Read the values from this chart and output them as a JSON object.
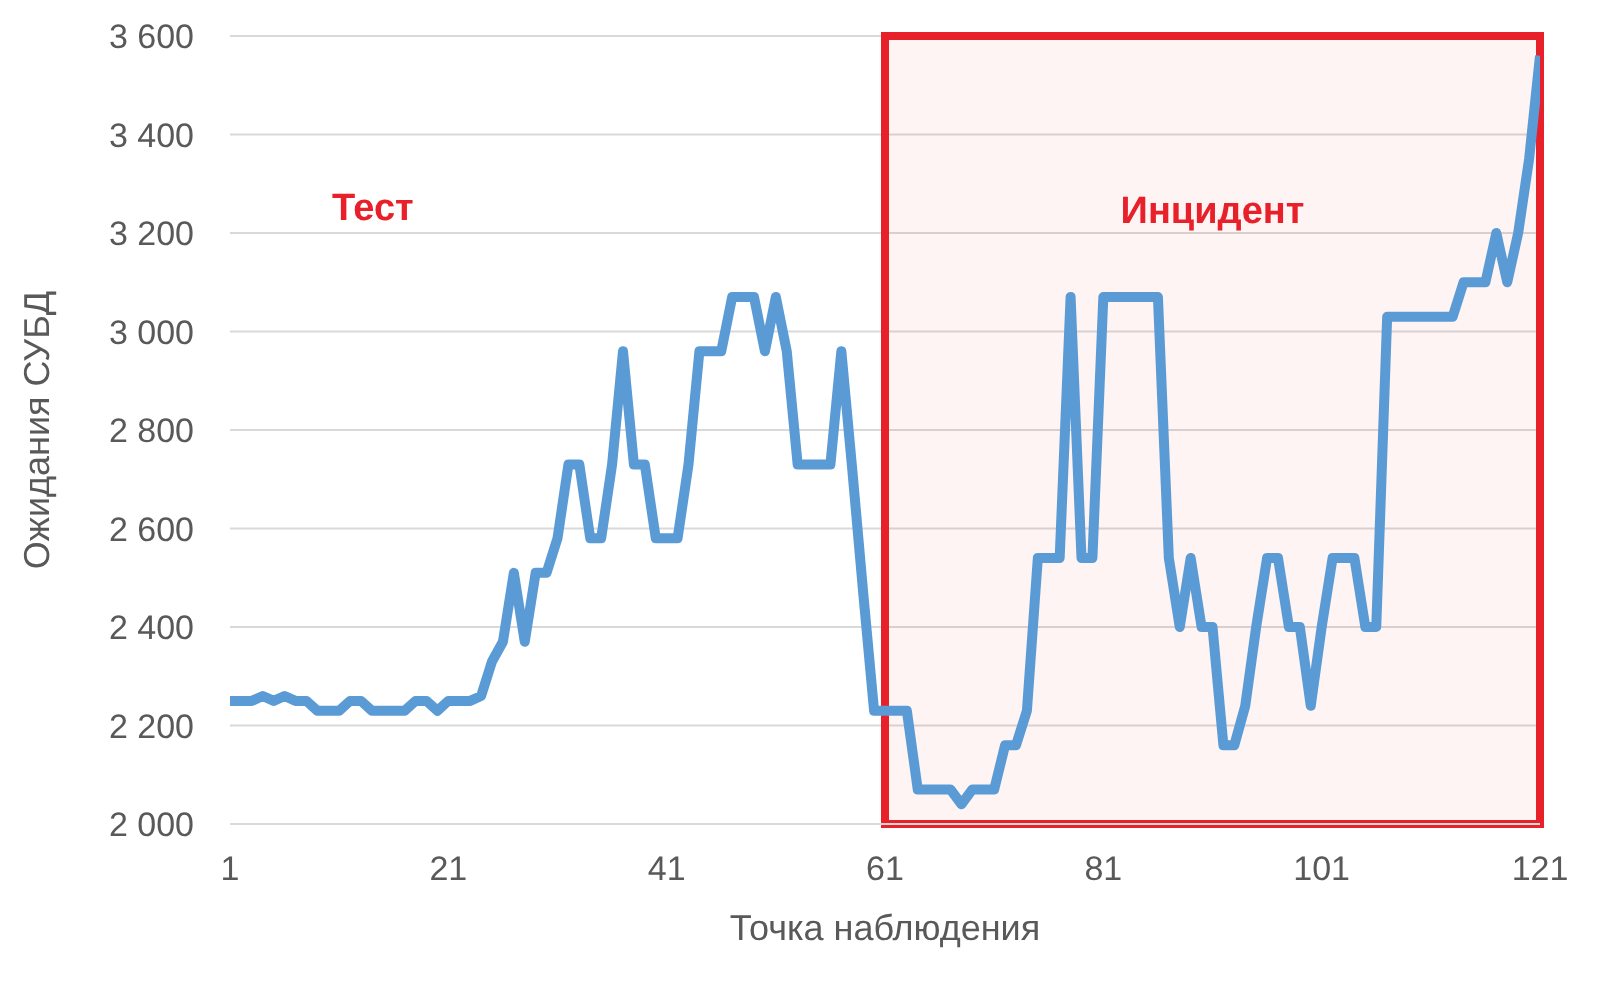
{
  "chart_data": {
    "type": "line",
    "xlabel": "Точка наблюдения",
    "ylabel": "Ожидания СУБД",
    "x": [
      1,
      2,
      3,
      4,
      5,
      6,
      7,
      8,
      9,
      10,
      11,
      12,
      13,
      14,
      15,
      16,
      17,
      18,
      19,
      20,
      21,
      22,
      23,
      24,
      25,
      26,
      27,
      28,
      29,
      30,
      31,
      32,
      33,
      34,
      35,
      36,
      37,
      38,
      39,
      40,
      41,
      42,
      43,
      44,
      45,
      46,
      47,
      48,
      49,
      50,
      51,
      52,
      53,
      54,
      55,
      56,
      57,
      58,
      59,
      60,
      61,
      62,
      63,
      64,
      65,
      66,
      67,
      68,
      69,
      70,
      71,
      72,
      73,
      74,
      75,
      76,
      77,
      78,
      79,
      80,
      81,
      82,
      83,
      84,
      85,
      86,
      87,
      88,
      89,
      90,
      91,
      92,
      93,
      94,
      95,
      96,
      97,
      98,
      99,
      100,
      101,
      102,
      103,
      104,
      105,
      106,
      107,
      108,
      109,
      110,
      111,
      112,
      113,
      114,
      115,
      116,
      117,
      118,
      119,
      120,
      121
    ],
    "series": [
      {
        "color": "#5b9bd5",
        "values": [
          2250,
          2250,
          2250,
          2260,
          2250,
          2260,
          2250,
          2250,
          2230,
          2230,
          2230,
          2250,
          2250,
          2230,
          2230,
          2230,
          2230,
          2250,
          2250,
          2230,
          2250,
          2250,
          2250,
          2260,
          2330,
          2370,
          2510,
          2370,
          2510,
          2510,
          2580,
          2730,
          2730,
          2580,
          2580,
          2730,
          2960,
          2730,
          2730,
          2580,
          2580,
          2580,
          2730,
          2960,
          2960,
          2960,
          3070,
          3070,
          3070,
          2960,
          3070,
          2960,
          2730,
          2730,
          2730,
          2730,
          2960,
          2720,
          2470,
          2230,
          2230,
          2230,
          2230,
          2070,
          2070,
          2070,
          2070,
          2040,
          2070,
          2070,
          2070,
          2160,
          2160,
          2230,
          2540,
          2540,
          2540,
          3070,
          2540,
          2540,
          3070,
          3070,
          3070,
          3070,
          3070,
          3070,
          2540,
          2400,
          2540,
          2400,
          2400,
          2160,
          2160,
          2240,
          2400,
          2540,
          2540,
          2400,
          2400,
          2240,
          2400,
          2540,
          2540,
          2540,
          2400,
          2400,
          3030,
          3030,
          3030,
          3030,
          3030,
          3030,
          3030,
          3100,
          3100,
          3100,
          3200,
          3100,
          3200,
          3350,
          3560
        ]
      }
    ],
    "xlim": [
      1,
      121
    ],
    "xticks": [
      1,
      21,
      41,
      61,
      81,
      101,
      121
    ],
    "ylim": [
      2000,
      3600
    ],
    "yticks": [
      {
        "value": 2000,
        "label": "2 000"
      },
      {
        "value": 2200,
        "label": "2 200"
      },
      {
        "value": 2400,
        "label": "2 400"
      },
      {
        "value": 2600,
        "label": "2 600"
      },
      {
        "value": 2800,
        "label": "2 800"
      },
      {
        "value": 3000,
        "label": "3 000"
      },
      {
        "value": 3200,
        "label": "3 200"
      },
      {
        "value": 3400,
        "label": "3 400"
      },
      {
        "value": 3600,
        "label": "3 600"
      }
    ],
    "grid": "y",
    "legend": false,
    "marker": "none",
    "line_style": "solid",
    "bands": [
      {
        "axis": "x",
        "from": 61,
        "to": 121,
        "label": "Инцидент",
        "color": "#e8202a"
      }
    ],
    "annotations": [
      "Тест"
    ]
  }
}
